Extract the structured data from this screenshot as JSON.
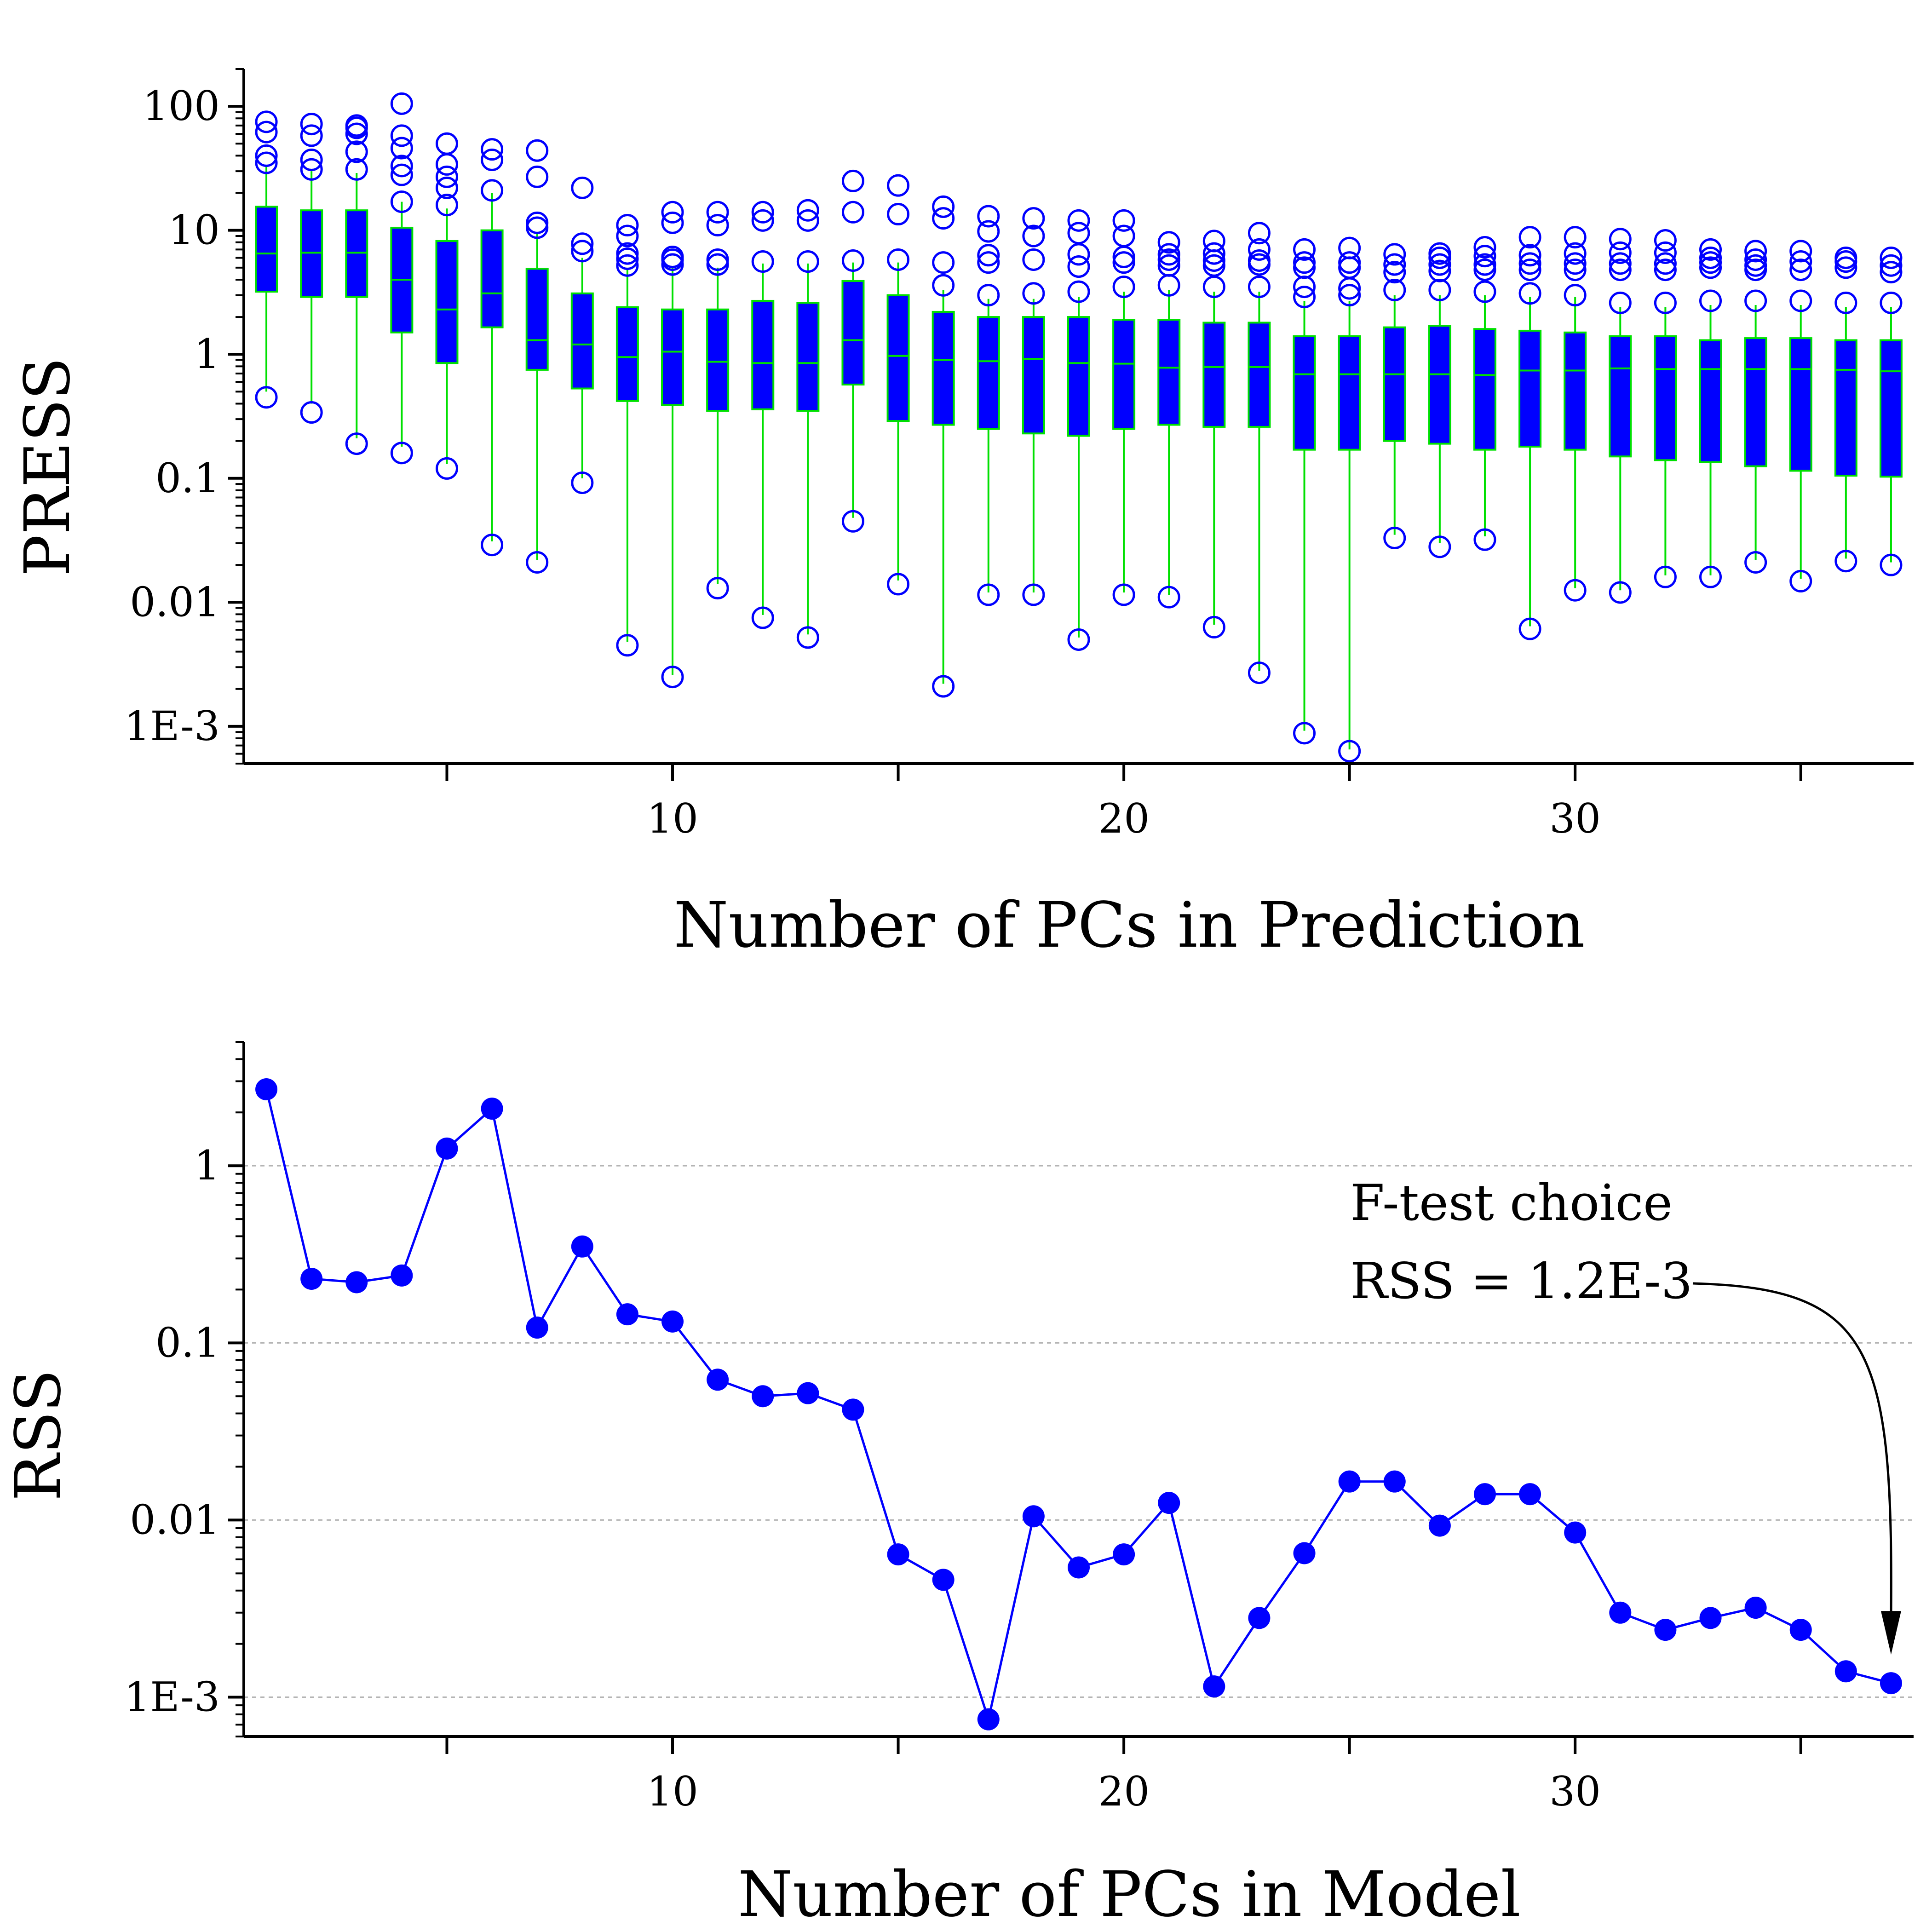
{
  "colors": {
    "box_fill": "#0000ff",
    "whisker": "#00e000",
    "outlier": "#0000ff",
    "line": "#0000ff",
    "grid": "#b4b4b4",
    "arrow": "#000000"
  },
  "chart_data": [
    {
      "type": "box",
      "title": "",
      "xlabel": "Number of PCs in Prediction",
      "ylabel": "PRESS",
      "yscale": "log",
      "ylim": [
        0.0005,
        200
      ],
      "xlim": [
        0.5,
        37.5
      ],
      "xticks": [
        10,
        20,
        30
      ],
      "xtick_labels": [
        "10",
        "20",
        "30"
      ],
      "yticks": [
        100,
        10,
        1,
        0.1,
        0.01,
        0.001
      ],
      "ytick_labels": [
        "100",
        "10",
        "1",
        "0.1",
        "0.01",
        "1E-3"
      ],
      "boxes": [
        {
          "x": 1,
          "q1": 3.2,
          "median": 6.5,
          "q3": 15.5,
          "whislo": 0.5,
          "whishi": 33,
          "outliers_low": [
            0.45
          ],
          "outliers_high": [
            35,
            40,
            62,
            75
          ]
        },
        {
          "x": 2,
          "q1": 2.9,
          "median": 6.6,
          "q3": 14.5,
          "whislo": 0.4,
          "whishi": 30,
          "outliers_low": [
            0.34
          ],
          "outliers_high": [
            31,
            37,
            58,
            72
          ]
        },
        {
          "x": 3,
          "q1": 2.9,
          "median": 6.6,
          "q3": 14.5,
          "whislo": 0.21,
          "whishi": 29,
          "outliers_low": [
            0.19
          ],
          "outliers_high": [
            31,
            43,
            60,
            67,
            70
          ]
        },
        {
          "x": 4,
          "q1": 1.5,
          "median": 4.0,
          "q3": 10.5,
          "whislo": 0.18,
          "whishi": 17,
          "outliers_low": [
            0.16
          ],
          "outliers_high": [
            17,
            28,
            33,
            46,
            58,
            105
          ]
        },
        {
          "x": 5,
          "q1": 0.85,
          "median": 2.3,
          "q3": 8.2,
          "whislo": 0.13,
          "whishi": 15,
          "outliers_low": [
            0.12
          ],
          "outliers_high": [
            16,
            22,
            27,
            34,
            50
          ]
        },
        {
          "x": 6,
          "q1": 1.65,
          "median": 3.1,
          "q3": 10.0,
          "whislo": 0.031,
          "whishi": 20,
          "outliers_low": [
            0.029
          ],
          "outliers_high": [
            21,
            37,
            45
          ]
        },
        {
          "x": 7,
          "q1": 0.75,
          "median": 1.3,
          "q3": 4.9,
          "whislo": 0.022,
          "whishi": 9.5,
          "outliers_low": [
            0.021
          ],
          "outliers_high": [
            10.5,
            11.5,
            27,
            44
          ]
        },
        {
          "x": 8,
          "q1": 0.53,
          "median": 1.2,
          "q3": 3.1,
          "whislo": 0.1,
          "whishi": 6.0,
          "outliers_low": [
            0.092
          ],
          "outliers_high": [
            6.8,
            7.8,
            22
          ]
        },
        {
          "x": 9,
          "q1": 0.42,
          "median": 0.95,
          "q3": 2.4,
          "whislo": 0.0048,
          "whishi": 5.0,
          "outliers_low": [
            0.0045
          ],
          "outliers_high": [
            5.2,
            5.9,
            6.5,
            9.0,
            11
          ]
        },
        {
          "x": 10,
          "q1": 0.39,
          "median": 1.05,
          "q3": 2.3,
          "whislo": 0.0026,
          "whishi": 5.0,
          "outliers_low": [
            0.0025
          ],
          "outliers_high": [
            5.3,
            5.8,
            6.1,
            11.5,
            14
          ]
        },
        {
          "x": 11,
          "q1": 0.35,
          "median": 0.87,
          "q3": 2.3,
          "whislo": 0.014,
          "whishi": 5.0,
          "outliers_low": [
            0.013
          ],
          "outliers_high": [
            5.3,
            5.8,
            11,
            14
          ]
        },
        {
          "x": 12,
          "q1": 0.36,
          "median": 0.85,
          "q3": 2.7,
          "whislo": 0.0079,
          "whishi": 5.4,
          "outliers_low": [
            0.0075
          ],
          "outliers_high": [
            5.6,
            12,
            14
          ]
        },
        {
          "x": 13,
          "q1": 0.35,
          "median": 0.85,
          "q3": 2.6,
          "whislo": 0.0055,
          "whishi": 5.4,
          "outliers_low": [
            0.0052
          ],
          "outliers_high": [
            5.6,
            12,
            14.5
          ]
        },
        {
          "x": 14,
          "q1": 0.57,
          "median": 1.3,
          "q3": 3.9,
          "whislo": 0.048,
          "whishi": 5.5,
          "outliers_low": [
            0.045
          ],
          "outliers_high": [
            5.7,
            14,
            25
          ]
        },
        {
          "x": 15,
          "q1": 0.29,
          "median": 0.97,
          "q3": 3.0,
          "whislo": 0.015,
          "whishi": 5.5,
          "outliers_low": [
            0.014
          ],
          "outliers_high": [
            5.8,
            13.5,
            23
          ]
        },
        {
          "x": 16,
          "q1": 0.27,
          "median": 0.9,
          "q3": 2.2,
          "whislo": 0.0022,
          "whishi": 3.3,
          "outliers_low": [
            0.0021
          ],
          "outliers_high": [
            3.6,
            5.5,
            12.5,
            15.5
          ]
        },
        {
          "x": 17,
          "q1": 0.25,
          "median": 0.88,
          "q3": 2.0,
          "whislo": 0.012,
          "whishi": 2.8,
          "outliers_low": [
            0.0115
          ],
          "outliers_high": [
            3.0,
            5.5,
            6.3,
            9.8,
            13
          ]
        },
        {
          "x": 18,
          "q1": 0.23,
          "median": 0.92,
          "q3": 2.0,
          "whislo": 0.012,
          "whishi": 2.8,
          "outliers_low": [
            0.0115
          ],
          "outliers_high": [
            3.1,
            5.8,
            9.0,
            12.5
          ]
        },
        {
          "x": 19,
          "q1": 0.22,
          "median": 0.85,
          "q3": 2.0,
          "whislo": 0.0052,
          "whishi": 2.9,
          "outliers_low": [
            0.005
          ],
          "outliers_high": [
            3.2,
            5.1,
            6.4,
            9.5,
            12
          ]
        },
        {
          "x": 20,
          "q1": 0.25,
          "median": 0.84,
          "q3": 1.9,
          "whislo": 0.012,
          "whishi": 3.2,
          "outliers_low": [
            0.0115
          ],
          "outliers_high": [
            3.5,
            5.5,
            6.1,
            9.0,
            12
          ]
        },
        {
          "x": 21,
          "q1": 0.27,
          "median": 0.78,
          "q3": 1.9,
          "whislo": 0.0115,
          "whishi": 3.3,
          "outliers_low": [
            0.011
          ],
          "outliers_high": [
            3.6,
            5.2,
            5.8,
            6.4,
            8.0
          ]
        },
        {
          "x": 22,
          "q1": 0.26,
          "median": 0.79,
          "q3": 1.8,
          "whislo": 0.0066,
          "whishi": 3.2,
          "outliers_low": [
            0.0063
          ],
          "outliers_high": [
            3.5,
            5.2,
            5.7,
            6.5,
            8.2
          ]
        },
        {
          "x": 23,
          "q1": 0.26,
          "median": 0.79,
          "q3": 1.8,
          "whislo": 0.0028,
          "whishi": 3.2,
          "outliers_low": [
            0.0027
          ],
          "outliers_high": [
            3.5,
            5.3,
            5.7,
            7.0,
            9.5
          ]
        },
        {
          "x": 24,
          "q1": 0.17,
          "median": 0.69,
          "q3": 1.4,
          "whislo": 0.00092,
          "whishi": 2.7,
          "outliers_low": [
            0.00088
          ],
          "outliers_high": [
            2.9,
            3.5,
            5.0,
            5.5,
            7.0
          ]
        },
        {
          "x": 25,
          "q1": 0.17,
          "median": 0.69,
          "q3": 1.4,
          "whislo": 0.00065,
          "whishi": 2.7,
          "outliers_low": [
            0.00063
          ],
          "outliers_high": [
            3.0,
            3.4,
            5.0,
            5.5,
            7.2
          ]
        },
        {
          "x": 26,
          "q1": 0.2,
          "median": 0.69,
          "q3": 1.65,
          "whislo": 0.035,
          "whishi": 3.0,
          "outliers_low": [
            0.033
          ],
          "outliers_high": [
            3.3,
            4.6,
            5.3,
            6.4
          ]
        },
        {
          "x": 27,
          "q1": 0.19,
          "median": 0.69,
          "q3": 1.7,
          "whislo": 0.03,
          "whishi": 3.0,
          "outliers_low": [
            0.028
          ],
          "outliers_high": [
            3.3,
            4.7,
            5.3,
            6.0,
            6.5
          ]
        },
        {
          "x": 28,
          "q1": 0.17,
          "median": 0.68,
          "q3": 1.6,
          "whislo": 0.034,
          "whishi": 3.0,
          "outliers_low": [
            0.032
          ],
          "outliers_high": [
            3.2,
            4.8,
            5.3,
            6.2,
            7.3
          ]
        },
        {
          "x": 29,
          "q1": 0.18,
          "median": 0.74,
          "q3": 1.55,
          "whislo": 0.0064,
          "whishi": 2.9,
          "outliers_low": [
            0.0061
          ],
          "outliers_high": [
            3.1,
            4.8,
            5.4,
            6.3,
            8.8
          ]
        },
        {
          "x": 30,
          "q1": 0.17,
          "median": 0.74,
          "q3": 1.5,
          "whislo": 0.013,
          "whishi": 2.9,
          "outliers_low": [
            0.0125
          ],
          "outliers_high": [
            3.0,
            4.8,
            5.4,
            6.5,
            8.8
          ]
        },
        {
          "x": 31,
          "q1": 0.15,
          "median": 0.77,
          "q3": 1.4,
          "whislo": 0.0125,
          "whishi": 2.4,
          "outliers_low": [
            0.012
          ],
          "outliers_high": [
            2.6,
            4.8,
            5.4,
            6.6,
            8.5
          ]
        },
        {
          "x": 32,
          "q1": 0.14,
          "median": 0.76,
          "q3": 1.4,
          "whislo": 0.0165,
          "whishi": 2.4,
          "outliers_low": [
            0.016
          ],
          "outliers_high": [
            2.6,
            4.8,
            5.4,
            6.6,
            8.3
          ]
        },
        {
          "x": 33,
          "q1": 0.135,
          "median": 0.76,
          "q3": 1.3,
          "whislo": 0.0165,
          "whishi": 2.5,
          "outliers_low": [
            0.016
          ],
          "outliers_high": [
            2.7,
            5.0,
            5.5,
            6.0,
            7.0
          ]
        },
        {
          "x": 34,
          "q1": 0.125,
          "median": 0.76,
          "q3": 1.35,
          "whislo": 0.022,
          "whishi": 2.5,
          "outliers_low": [
            0.021
          ],
          "outliers_high": [
            2.7,
            4.8,
            5.2,
            5.8,
            6.8
          ]
        },
        {
          "x": 35,
          "q1": 0.115,
          "median": 0.76,
          "q3": 1.35,
          "whislo": 0.0155,
          "whishi": 2.5,
          "outliers_low": [
            0.0148
          ],
          "outliers_high": [
            2.7,
            4.8,
            5.6,
            6.8
          ]
        },
        {
          "x": 36,
          "q1": 0.105,
          "median": 0.75,
          "q3": 1.3,
          "whislo": 0.0225,
          "whishi": 2.4,
          "outliers_low": [
            0.0215
          ],
          "outliers_high": [
            2.6,
            5.0,
            5.6,
            6.0
          ]
        },
        {
          "x": 37,
          "q1": 0.103,
          "median": 0.73,
          "q3": 1.3,
          "whislo": 0.021,
          "whishi": 2.4,
          "outliers_low": [
            0.02
          ],
          "outliers_high": [
            2.6,
            4.6,
            5.2,
            6.0
          ]
        }
      ]
    },
    {
      "type": "line",
      "title": "",
      "xlabel": "Number of PCs in Model",
      "ylabel": "RSS",
      "yscale": "log",
      "ylim": [
        0.0006,
        5
      ],
      "xlim": [
        0.5,
        37.5
      ],
      "grid": true,
      "xticks": [
        10,
        20,
        30
      ],
      "xtick_labels": [
        "10",
        "20",
        "30"
      ],
      "yticks": [
        1,
        0.1,
        0.01,
        0.001
      ],
      "ytick_labels": [
        "1",
        "0.1",
        "0.01",
        "1E-3"
      ],
      "x": [
        1,
        2,
        3,
        4,
        5,
        6,
        7,
        8,
        9,
        10,
        11,
        12,
        13,
        14,
        15,
        16,
        17,
        18,
        19,
        20,
        21,
        22,
        23,
        24,
        25,
        26,
        27,
        28,
        29,
        30,
        31,
        32,
        33,
        34,
        35,
        36,
        37
      ],
      "y": [
        2.7,
        0.23,
        0.22,
        0.24,
        1.25,
        2.1,
        0.122,
        0.35,
        0.145,
        0.132,
        0.062,
        0.05,
        0.052,
        0.042,
        0.0064,
        0.0046,
        0.00075,
        0.0105,
        0.0054,
        0.0064,
        0.0125,
        0.00115,
        0.0028,
        0.0065,
        0.0165,
        0.0165,
        0.0093,
        0.014,
        0.014,
        0.0085,
        0.003,
        0.0024,
        0.0028,
        0.0032,
        0.0024,
        0.0014,
        0.0012
      ],
      "annotation": {
        "line1": "F-test choice",
        "line2": "RSS = 1.2E-3",
        "points_to_x": 37
      }
    }
  ]
}
